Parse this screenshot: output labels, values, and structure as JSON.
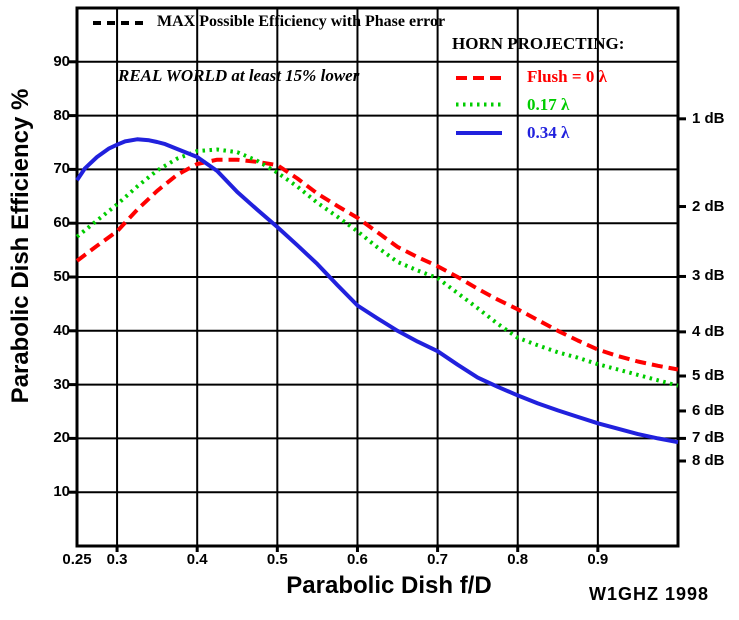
{
  "annotations": {
    "max_efficiency_note": "MAX Possible Efficiency with Phase error",
    "real_world_note": "REAL WORLD at least 15% lower",
    "horn_projecting_label": "HORN PROJECTING:"
  },
  "legend": {
    "entries": [
      {
        "label": "Flush = 0 λ",
        "color": "#ff0000",
        "style": "dashed"
      },
      {
        "label": "0.17 λ",
        "color": "#00cc00",
        "style": "dotted"
      },
      {
        "label": "0.34 λ",
        "color": "#2121dd",
        "style": "solid"
      }
    ]
  },
  "credit": "W1GHZ 1998",
  "chart_data": {
    "type": "line",
    "title": "",
    "xlabel": "Parabolic Dish f/D",
    "ylabel": "Parabolic Dish Efficiency %",
    "xlim": [
      0.25,
      1.0
    ],
    "ylim": [
      0,
      100
    ],
    "grid": true,
    "grid_color": "#000000",
    "x_ticks": [
      {
        "v": 0.25,
        "label": "0.25"
      },
      {
        "v": 0.3,
        "label": "0.3"
      },
      {
        "v": 0.4,
        "label": "0.4"
      },
      {
        "v": 0.5,
        "label": "0.5"
      },
      {
        "v": 0.6,
        "label": "0.6"
      },
      {
        "v": 0.7,
        "label": "0.7"
      },
      {
        "v": 0.8,
        "label": "0.8"
      },
      {
        "v": 0.9,
        "label": "0.9"
      }
    ],
    "x_gridlines": [
      0.3,
      0.4,
      0.5,
      0.6,
      0.7,
      0.8,
      0.9
    ],
    "y_ticks": [
      {
        "v": 10,
        "label": "10"
      },
      {
        "v": 20,
        "label": "20"
      },
      {
        "v": 30,
        "label": "30"
      },
      {
        "v": 40,
        "label": "40"
      },
      {
        "v": 50,
        "label": "50"
      },
      {
        "v": 60,
        "label": "60"
      },
      {
        "v": 70,
        "label": "70"
      },
      {
        "v": 80,
        "label": "80"
      },
      {
        "v": 90,
        "label": "90"
      }
    ],
    "right_axis": {
      "unit": "dB loss from 100% efficiency",
      "ticks": [
        {
          "label": "1 dB",
          "efficiency": 79.4
        },
        {
          "label": "2 dB",
          "efficiency": 63.1
        },
        {
          "label": "3 dB",
          "efficiency": 50.1
        },
        {
          "label": "4 dB",
          "efficiency": 39.8
        },
        {
          "label": "5 dB",
          "efficiency": 31.6
        },
        {
          "label": "6 dB",
          "efficiency": 25.1
        },
        {
          "label": "7 dB",
          "efficiency": 20.0
        },
        {
          "label": "8 dB",
          "efficiency": 15.8
        }
      ]
    },
    "series": [
      {
        "name": "Flush = 0 λ",
        "color": "#ff0000",
        "style": "dashed",
        "x": [
          0.25,
          0.275,
          0.3,
          0.325,
          0.35,
          0.375,
          0.4,
          0.425,
          0.45,
          0.475,
          0.5,
          0.525,
          0.55,
          0.575,
          0.6,
          0.625,
          0.65,
          0.675,
          0.7,
          0.725,
          0.75,
          0.775,
          0.8,
          0.825,
          0.85,
          0.875,
          0.9,
          0.925,
          0.95,
          0.975,
          1.0
        ],
        "y": [
          53,
          55.8,
          58.5,
          62.5,
          66,
          69,
          71,
          71.8,
          71.8,
          71.4,
          70.8,
          68.3,
          65.5,
          63.2,
          61,
          58.3,
          55.6,
          53.7,
          52,
          50,
          47.8,
          45.8,
          44,
          42,
          40,
          38.2,
          36.5,
          35.3,
          34.3,
          33.5,
          32.8
        ]
      },
      {
        "name": "0.17 λ",
        "color": "#00cc00",
        "style": "dotted",
        "x": [
          0.25,
          0.275,
          0.3,
          0.325,
          0.35,
          0.375,
          0.4,
          0.425,
          0.45,
          0.475,
          0.5,
          0.525,
          0.55,
          0.575,
          0.6,
          0.625,
          0.65,
          0.675,
          0.7,
          0.725,
          0.75,
          0.775,
          0.8,
          0.825,
          0.85,
          0.875,
          0.9,
          0.925,
          0.95,
          0.975,
          1.0
        ],
        "y": [
          57.5,
          60.5,
          63.5,
          66.8,
          69.8,
          72,
          73.4,
          73.7,
          73.2,
          71.6,
          69.4,
          66.8,
          63.8,
          61.2,
          58.5,
          55.5,
          52.8,
          51.2,
          49.8,
          47,
          44.2,
          41.3,
          38.7,
          37.3,
          36,
          35,
          33.8,
          32.8,
          31.8,
          30.8,
          29.8
        ]
      },
      {
        "name": "0.34 λ",
        "color": "#2121dd",
        "style": "solid",
        "x": [
          0.25,
          0.26,
          0.275,
          0.29,
          0.3,
          0.31,
          0.325,
          0.34,
          0.35,
          0.36,
          0.375,
          0.4,
          0.425,
          0.45,
          0.475,
          0.5,
          0.525,
          0.55,
          0.575,
          0.6,
          0.625,
          0.65,
          0.675,
          0.7,
          0.725,
          0.75,
          0.775,
          0.8,
          0.825,
          0.85,
          0.875,
          0.9,
          0.925,
          0.95,
          0.975,
          1.0
        ],
        "y": [
          68,
          70.2,
          72.3,
          73.9,
          74.6,
          75.2,
          75.6,
          75.4,
          75.1,
          74.7,
          73.8,
          72.3,
          69.7,
          65.8,
          62.5,
          59.3,
          55.9,
          52.4,
          48.5,
          44.7,
          42.3,
          40,
          38,
          36.2,
          33.7,
          31.3,
          29.6,
          28,
          26.5,
          25.2,
          24,
          22.8,
          21.8,
          20.8,
          20,
          19.3
        ]
      }
    ]
  }
}
